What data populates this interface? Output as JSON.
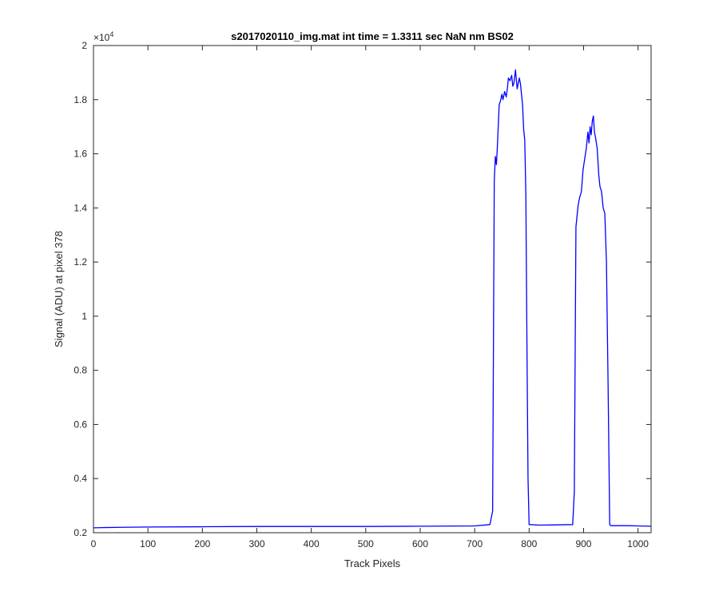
{
  "chart_data": {
    "type": "line",
    "title": "s2017020110_img.mat int time = 1.3311 sec  NaN nm BS02",
    "xlabel": "Track Pixels",
    "ylabel": "Signal (ADU) at pixel 378",
    "xlim": [
      0,
      1024
    ],
    "ylim": [
      2000,
      20000
    ],
    "y_multiplier": "×10^4",
    "x_ticks": [
      0,
      100,
      200,
      300,
      400,
      500,
      600,
      700,
      800,
      900,
      1000
    ],
    "x_tick_labels": [
      "0",
      "100",
      "200",
      "300",
      "400",
      "500",
      "600",
      "700",
      "800",
      "900",
      "1000"
    ],
    "y_ticks": [
      2000,
      4000,
      6000,
      8000,
      10000,
      12000,
      14000,
      16000,
      18000,
      20000
    ],
    "y_tick_labels": [
      "0.2",
      "0.4",
      "0.6",
      "0.8",
      "1",
      "1.2",
      "1.4",
      "1.6",
      "1.8",
      "2"
    ],
    "grid": false,
    "series_color": "#0000ff",
    "series": [
      {
        "x": [
          0,
          20,
          50,
          100,
          200,
          300,
          400,
          500,
          600,
          700,
          728,
          733,
          736,
          738,
          740,
          742,
          745,
          748,
          750,
          752,
          755,
          758,
          760,
          762,
          765,
          768,
          770,
          772,
          775,
          778,
          780,
          782,
          784,
          786,
          788,
          790,
          792,
          794,
          796,
          798,
          800,
          820,
          850,
          880,
          883,
          886,
          888,
          890,
          893,
          896,
          899,
          902,
          905,
          908,
          910,
          912,
          914,
          916,
          918,
          920,
          922,
          925,
          928,
          930,
          933,
          936,
          939,
          942,
          945,
          948,
          950,
          980,
          1000,
          1024
        ],
        "y": [
          2180,
          2190,
          2200,
          2210,
          2220,
          2230,
          2230,
          2230,
          2240,
          2250,
          2300,
          2800,
          15000,
          15900,
          15600,
          16400,
          17800,
          18000,
          18200,
          18000,
          18300,
          18100,
          18400,
          18800,
          18700,
          18900,
          18500,
          18600,
          19100,
          18400,
          18600,
          18800,
          18600,
          18200,
          17800,
          16900,
          16500,
          14500,
          9000,
          4000,
          2300,
          2280,
          2290,
          2300,
          3500,
          13300,
          13700,
          14100,
          14400,
          14600,
          15400,
          15800,
          16200,
          16800,
          16400,
          17000,
          16700,
          17200,
          17400,
          16800,
          16600,
          16200,
          15200,
          14800,
          14600,
          14000,
          13800,
          12000,
          7500,
          2300,
          2260,
          2260,
          2250,
          2240
        ]
      }
    ]
  }
}
